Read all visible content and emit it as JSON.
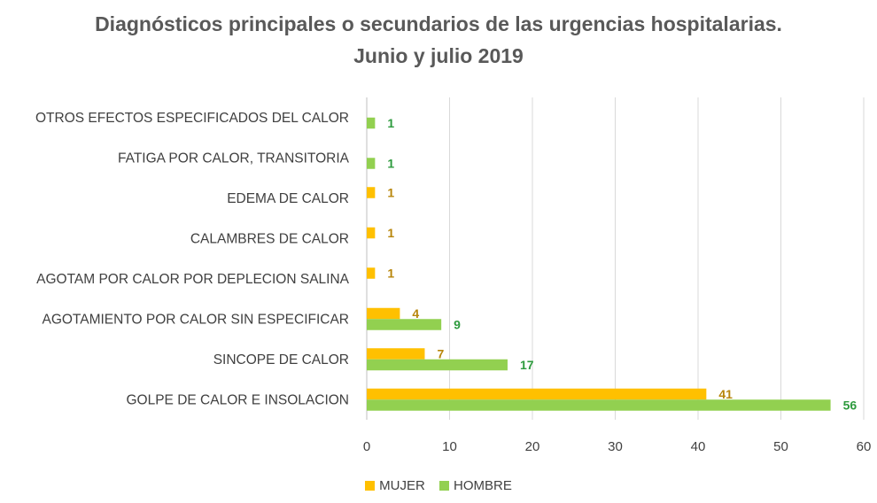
{
  "chart_data": {
    "type": "bar",
    "orientation": "horizontal",
    "title": "Diagnósticos principales o secundarios de las urgencias hospitalarias.",
    "subtitle": "Junio y julio 2019",
    "categories": [
      "OTROS EFECTOS ESPECIFICADOS DEL CALOR",
      "FATIGA POR CALOR, TRANSITORIA",
      "EDEMA DE CALOR",
      "CALAMBRES DE CALOR",
      "AGOTAM POR CALOR POR  DEPLECION SALINA",
      "AGOTAMIENTO POR CALOR SIN ESPECIFICAR",
      "SINCOPE DE CALOR",
      "GOLPE DE CALOR E INSOLACION"
    ],
    "series": [
      {
        "name": "MUJER",
        "color": "#FFC000",
        "label_color": "#B8860B",
        "values": [
          null,
          null,
          1,
          1,
          1,
          4,
          7,
          41
        ]
      },
      {
        "name": "HOMBRE",
        "color": "#92D050",
        "label_color": "#2E9B3E",
        "values": [
          1,
          1,
          null,
          null,
          null,
          9,
          17,
          56
        ]
      }
    ],
    "xlim": [
      0,
      60
    ],
    "xticks": [
      0,
      10,
      20,
      30,
      40,
      50,
      60
    ],
    "grid": true,
    "legend_position": "bottom"
  }
}
